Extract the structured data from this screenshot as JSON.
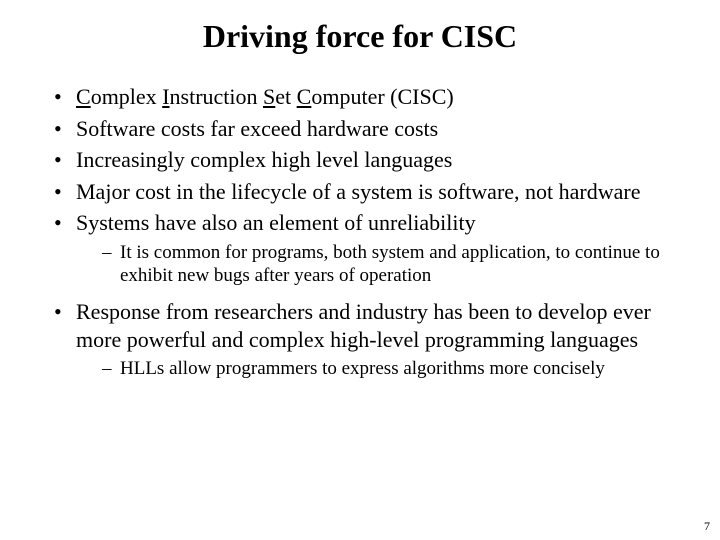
{
  "title": "Driving force for CISC",
  "bullets": {
    "b0": {
      "pre": "",
      "u1": "C",
      "m1": "omplex ",
      "u2": "I",
      "m2": "nstruction ",
      "u3": "S",
      "m3": "et ",
      "u4": "C",
      "m4": "omputer (CISC)"
    },
    "b1": "Software costs far exceed hardware costs",
    "b2": "Increasingly complex high level languages",
    "b3": "Major cost in the lifecycle of a system is software, not hardware",
    "b4": "Systems have also an element of unreliability",
    "b4_sub0": "It is common for programs, both system and application, to continue to exhibit new bugs after years of operation",
    "b5": "Response from researchers and industry has been to develop ever more powerful and complex high-level programming languages",
    "b5_sub0": "HLLs allow programmers to express algorithms more concisely"
  },
  "page_number": "7",
  "colors": {
    "background": "#ffffff",
    "text": "#000000"
  },
  "typography": {
    "title_fontsize_pt": 32,
    "body_fontsize_pt": 22,
    "sub_fontsize_pt": 19,
    "font_family": "Times New Roman"
  }
}
